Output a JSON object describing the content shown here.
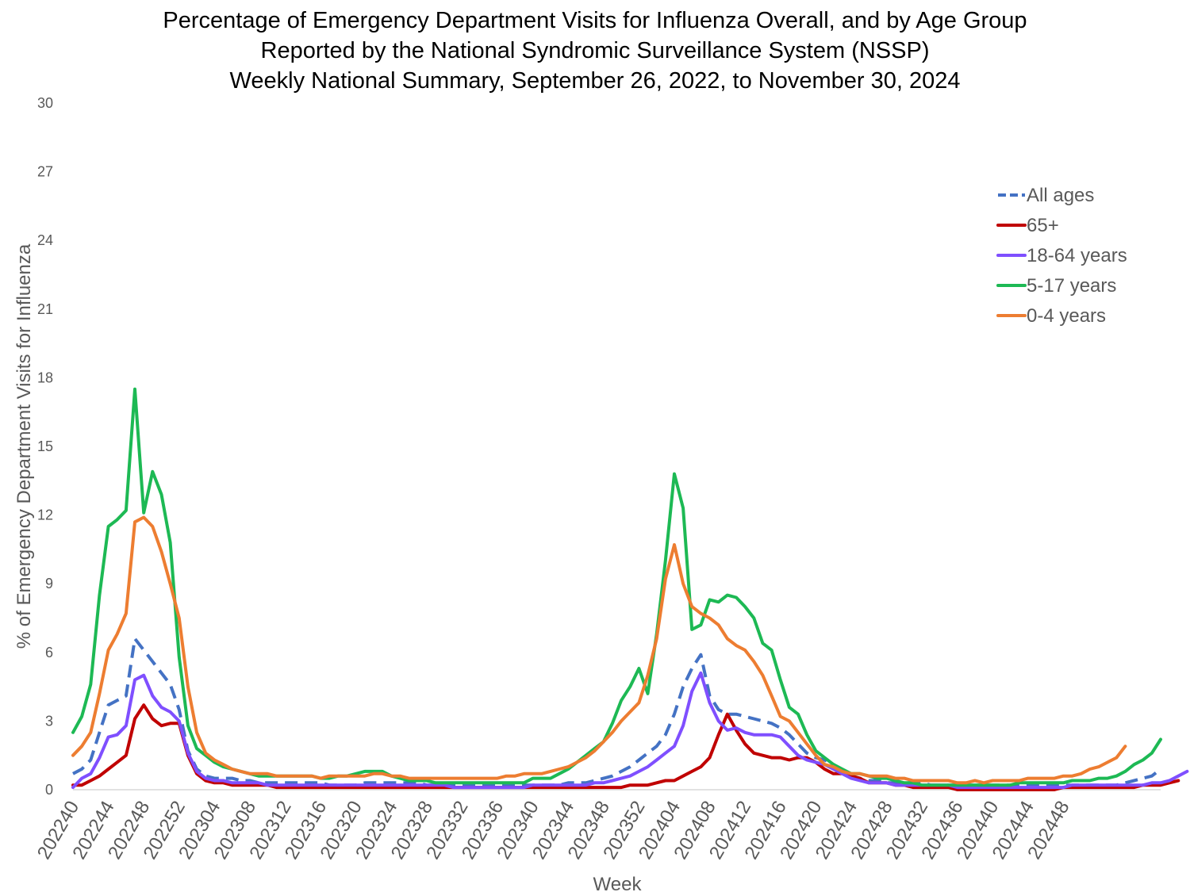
{
  "chart_data": {
    "type": "line",
    "title_lines": [
      "Percentage of Emergency Department Visits for Influenza Overall, and by Age Group",
      "Reported by the National Syndromic Surveillance System (NSSP)",
      "Weekly National Summary, September 26, 2022, to November 30, 2024"
    ],
    "xlabel": "Week",
    "ylabel": "% of Emergency Department Visits for Influenza",
    "ylim": [
      0,
      30
    ],
    "yticks": [
      0,
      3,
      6,
      9,
      12,
      15,
      18,
      21,
      24,
      27,
      30
    ],
    "grid": false,
    "legend_position": "top-right",
    "x_tick_labels": [
      "202240",
      "202244",
      "202248",
      "202252",
      "202304",
      "202308",
      "202312",
      "202316",
      "202320",
      "202324",
      "202328",
      "202332",
      "202336",
      "202340",
      "202344",
      "202348",
      "202352",
      "202404",
      "202408",
      "202412",
      "202416",
      "202420",
      "202424",
      "202428",
      "202432",
      "202436",
      "202440",
      "202444",
      "202448"
    ],
    "series": [
      {
        "name": "All ages",
        "color": "#4472C4",
        "dashed": true,
        "values": [
          0.7,
          0.9,
          1.3,
          2.5,
          3.7,
          3.9,
          4.1,
          6.6,
          6.1,
          5.6,
          5.1,
          4.6,
          3.5,
          1.7,
          0.9,
          0.6,
          0.5,
          0.5,
          0.5,
          0.4,
          0.4,
          0.3,
          0.3,
          0.3,
          0.3,
          0.3,
          0.3,
          0.3,
          0.3,
          0.2,
          0.2,
          0.2,
          0.2,
          0.3,
          0.3,
          0.3,
          0.3,
          0.3,
          0.3,
          0.3,
          0.2,
          0.2,
          0.2,
          0.2,
          0.2,
          0.2,
          0.2,
          0.2,
          0.2,
          0.2,
          0.2,
          0.2,
          0.2,
          0.2,
          0.2,
          0.2,
          0.3,
          0.3,
          0.3,
          0.4,
          0.5,
          0.6,
          0.8,
          1.0,
          1.3,
          1.6,
          1.9,
          2.4,
          3.3,
          4.5,
          5.3,
          5.9,
          4.1,
          3.5,
          3.3,
          3.3,
          3.2,
          3.1,
          3.0,
          2.9,
          2.7,
          2.4,
          2.0,
          1.6,
          1.4,
          1.3,
          1.1,
          0.8,
          0.6,
          0.5,
          0.4,
          0.4,
          0.3,
          0.3,
          0.3,
          0.3,
          0.3,
          0.2,
          0.2,
          0.2,
          0.2,
          0.2,
          0.2,
          0.2,
          0.2,
          0.2,
          0.2,
          0.2,
          0.2,
          0.2,
          0.2,
          0.2,
          0.2,
          0.2,
          0.2,
          0.2,
          0.2,
          0.2,
          0.2,
          0.3,
          0.4,
          0.5,
          0.6,
          0.9
        ]
      },
      {
        "name": "65+",
        "color": "#C00000",
        "dashed": false,
        "values": [
          0.2,
          0.2,
          0.4,
          0.6,
          0.9,
          1.2,
          1.5,
          3.1,
          3.7,
          3.1,
          2.8,
          2.9,
          2.9,
          1.5,
          0.7,
          0.4,
          0.3,
          0.3,
          0.2,
          0.2,
          0.2,
          0.2,
          0.2,
          0.1,
          0.1,
          0.1,
          0.1,
          0.1,
          0.1,
          0.1,
          0.1,
          0.1,
          0.1,
          0.1,
          0.1,
          0.1,
          0.1,
          0.1,
          0.1,
          0.1,
          0.1,
          0.1,
          0.1,
          0.1,
          0.1,
          0.1,
          0.1,
          0.1,
          0.1,
          0.1,
          0.1,
          0.1,
          0.1,
          0.1,
          0.1,
          0.1,
          0.1,
          0.1,
          0.1,
          0.1,
          0.1,
          0.1,
          0.1,
          0.2,
          0.2,
          0.2,
          0.3,
          0.4,
          0.4,
          0.6,
          0.8,
          1.0,
          1.4,
          2.4,
          3.3,
          2.6,
          2.0,
          1.6,
          1.5,
          1.4,
          1.4,
          1.3,
          1.4,
          1.4,
          1.2,
          0.9,
          0.7,
          0.7,
          0.6,
          0.5,
          0.3,
          0.3,
          0.3,
          0.2,
          0.2,
          0.1,
          0.1,
          0.1,
          0.1,
          0.1,
          0.0,
          0.0,
          0.0,
          0.0,
          0.0,
          0.0,
          0.0,
          0.0,
          0.0,
          0.0,
          0.0,
          0.0,
          0.1,
          0.1,
          0.1,
          0.1,
          0.1,
          0.1,
          0.1,
          0.1,
          0.1,
          0.2,
          0.2,
          0.2,
          0.3,
          0.4
        ]
      },
      {
        "name": "18-64 years",
        "color": "#7F4FFF",
        "dashed": false,
        "values": [
          0.1,
          0.5,
          0.7,
          1.4,
          2.3,
          2.4,
          2.8,
          4.8,
          5.0,
          4.1,
          3.6,
          3.4,
          3.0,
          1.6,
          0.8,
          0.5,
          0.4,
          0.4,
          0.3,
          0.3,
          0.3,
          0.3,
          0.2,
          0.2,
          0.2,
          0.2,
          0.2,
          0.2,
          0.2,
          0.2,
          0.2,
          0.2,
          0.2,
          0.2,
          0.2,
          0.2,
          0.2,
          0.2,
          0.2,
          0.2,
          0.2,
          0.2,
          0.2,
          0.1,
          0.1,
          0.1,
          0.1,
          0.1,
          0.1,
          0.1,
          0.1,
          0.1,
          0.2,
          0.2,
          0.2,
          0.2,
          0.2,
          0.2,
          0.2,
          0.3,
          0.3,
          0.4,
          0.5,
          0.6,
          0.8,
          1.0,
          1.3,
          1.6,
          1.9,
          2.8,
          4.3,
          5.1,
          3.8,
          3.0,
          2.6,
          2.7,
          2.5,
          2.4,
          2.4,
          2.4,
          2.3,
          1.9,
          1.5,
          1.3,
          1.2,
          1.1,
          0.9,
          0.7,
          0.5,
          0.4,
          0.3,
          0.3,
          0.3,
          0.2,
          0.2,
          0.2,
          0.2,
          0.2,
          0.2,
          0.2,
          0.1,
          0.1,
          0.1,
          0.1,
          0.1,
          0.1,
          0.1,
          0.1,
          0.1,
          0.1,
          0.1,
          0.1,
          0.1,
          0.2,
          0.2,
          0.2,
          0.2,
          0.2,
          0.2,
          0.2,
          0.2,
          0.2,
          0.3,
          0.3,
          0.4,
          0.6,
          0.8
        ]
      },
      {
        "name": "5-17 years",
        "color": "#1DB954",
        "dashed": false,
        "values": [
          2.5,
          3.2,
          4.6,
          8.5,
          11.5,
          11.8,
          12.2,
          17.5,
          12.1,
          13.9,
          12.9,
          10.8,
          5.8,
          2.8,
          1.8,
          1.5,
          1.2,
          1.0,
          0.9,
          0.8,
          0.7,
          0.6,
          0.6,
          0.6,
          0.6,
          0.6,
          0.6,
          0.6,
          0.5,
          0.5,
          0.6,
          0.6,
          0.7,
          0.8,
          0.8,
          0.8,
          0.6,
          0.5,
          0.4,
          0.4,
          0.4,
          0.3,
          0.3,
          0.3,
          0.3,
          0.3,
          0.3,
          0.3,
          0.3,
          0.3,
          0.3,
          0.3,
          0.5,
          0.5,
          0.5,
          0.7,
          0.9,
          1.2,
          1.5,
          1.8,
          2.1,
          2.9,
          3.9,
          4.5,
          5.3,
          4.2,
          6.8,
          10.0,
          13.8,
          12.3,
          7.0,
          7.2,
          8.3,
          8.2,
          8.5,
          8.4,
          8.0,
          7.5,
          6.4,
          6.1,
          4.8,
          3.6,
          3.3,
          2.4,
          1.7,
          1.4,
          1.1,
          0.9,
          0.7,
          0.7,
          0.6,
          0.5,
          0.5,
          0.4,
          0.3,
          0.3,
          0.2,
          0.2,
          0.2,
          0.2,
          0.2,
          0.2,
          0.2,
          0.2,
          0.2,
          0.2,
          0.2,
          0.3,
          0.3,
          0.3,
          0.3,
          0.3,
          0.3,
          0.4,
          0.4,
          0.4,
          0.5,
          0.5,
          0.6,
          0.8,
          1.1,
          1.3,
          1.6,
          2.2
        ]
      },
      {
        "name": "0-4 years",
        "color": "#ED7D31",
        "dashed": false,
        "values": [
          1.5,
          1.9,
          2.5,
          4.2,
          6.1,
          6.8,
          7.7,
          11.7,
          11.9,
          11.5,
          10.4,
          9.0,
          7.5,
          4.5,
          2.5,
          1.6,
          1.3,
          1.1,
          0.9,
          0.8,
          0.7,
          0.7,
          0.7,
          0.6,
          0.6,
          0.6,
          0.6,
          0.6,
          0.5,
          0.6,
          0.6,
          0.6,
          0.6,
          0.6,
          0.7,
          0.7,
          0.6,
          0.6,
          0.5,
          0.5,
          0.5,
          0.5,
          0.5,
          0.5,
          0.5,
          0.5,
          0.5,
          0.5,
          0.5,
          0.6,
          0.6,
          0.7,
          0.7,
          0.7,
          0.8,
          0.9,
          1.0,
          1.2,
          1.4,
          1.7,
          2.1,
          2.5,
          3.0,
          3.4,
          3.8,
          5.0,
          6.6,
          9.2,
          10.7,
          9.0,
          8.0,
          7.7,
          7.5,
          7.2,
          6.6,
          6.3,
          6.1,
          5.6,
          5.0,
          4.1,
          3.2,
          3.0,
          2.5,
          2.0,
          1.5,
          1.1,
          1.0,
          0.8,
          0.7,
          0.7,
          0.6,
          0.6,
          0.6,
          0.5,
          0.5,
          0.4,
          0.4,
          0.4,
          0.4,
          0.4,
          0.3,
          0.3,
          0.4,
          0.3,
          0.4,
          0.4,
          0.4,
          0.4,
          0.5,
          0.5,
          0.5,
          0.5,
          0.6,
          0.6,
          0.7,
          0.9,
          1.0,
          1.2,
          1.4,
          1.9
        ]
      }
    ]
  }
}
